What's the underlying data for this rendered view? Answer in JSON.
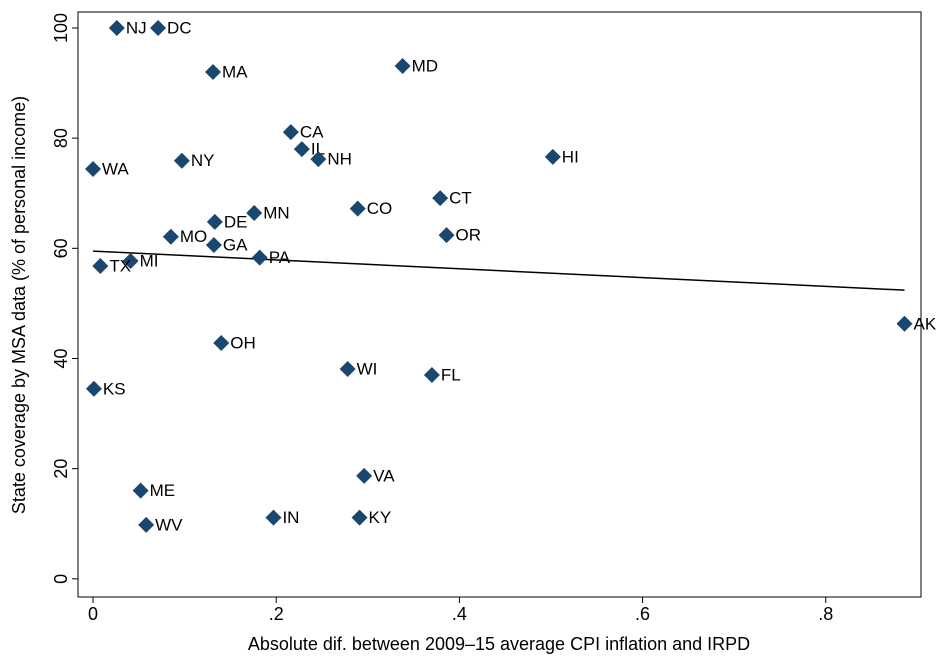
{
  "chart_data": {
    "type": "scatter",
    "x_label": "Absolute dif. between 2009–15 average CPI inflation and IRPD",
    "y_label": "State coverage by MSA data (% of personal income)",
    "color": "#1a476f",
    "point_labels": [
      "NJ",
      "DC",
      "MA",
      "MD",
      "CA",
      "IL",
      "NH",
      "HI",
      "NY",
      "WA",
      "CT",
      "CO",
      "MN",
      "DE",
      "OR",
      "MO",
      "GA",
      "PA",
      "MI",
      "TX",
      "AK",
      "OH",
      "WI",
      "FL",
      "KS",
      "VA",
      "ME",
      "WV",
      "IN",
      "KY"
    ],
    "x": [
      0.026,
      0.071,
      0.131,
      0.338,
      0.216,
      0.228,
      0.246,
      0.502,
      0.097,
      0.0,
      0.379,
      0.289,
      0.176,
      0.133,
      0.386,
      0.085,
      0.132,
      0.182,
      0.041,
      0.008,
      0.886,
      0.14,
      0.278,
      0.37,
      0.001,
      0.296,
      0.052,
      0.058,
      0.197,
      0.291
    ],
    "values": [
      100,
      100,
      92.0,
      93.1,
      81.1,
      78.0,
      76.2,
      76.6,
      75.9,
      74.4,
      69.1,
      67.2,
      66.4,
      64.8,
      62.4,
      62.1,
      60.6,
      58.3,
      57.7,
      56.8,
      46.3,
      42.8,
      38.1,
      37.0,
      34.5,
      18.7,
      16.0,
      9.8,
      11.1,
      11.1
    ],
    "fit_line": {
      "x": [
        0,
        0.886
      ],
      "y": [
        59.5,
        52.4
      ],
      "color": "#000000"
    },
    "xlim": [
      -0.0164,
      0.904
    ],
    "ylim": [
      -3.3,
      102.9
    ],
    "xticks": [
      0,
      {
        "value": 0.2,
        "label": ".2"
      },
      {
        "value": 0.4,
        "label": ".4"
      },
      {
        "value": 0.6,
        "label": ".6"
      },
      {
        "value": 0.8,
        "label": ".8"
      }
    ],
    "yticks": [
      0,
      20,
      40,
      60,
      80,
      100
    ]
  }
}
